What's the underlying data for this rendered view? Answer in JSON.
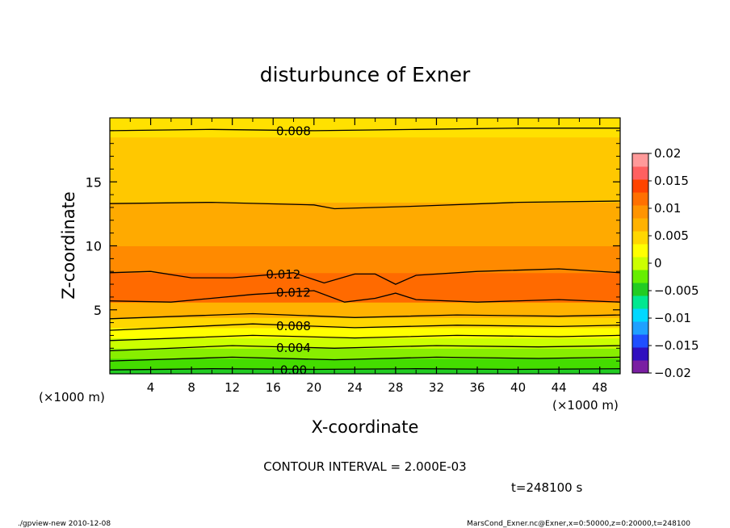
{
  "chart_data": {
    "type": "heatmap",
    "title": "disturbunce of Exner",
    "xlabel": "X-coordinate",
    "ylabel": "Z-coordinate",
    "x_unit_left": "(×1000 m)",
    "x_unit_right": "(×1000 m)",
    "xlim": [
      0,
      50
    ],
    "ylim": [
      0,
      20
    ],
    "x_ticks": [
      "4",
      "8",
      "12",
      "16",
      "20",
      "24",
      "28",
      "32",
      "36",
      "40",
      "44",
      "48"
    ],
    "y_ticks": [
      "5",
      "10",
      "15"
    ],
    "colorbar": {
      "ticks": [
        "0.02",
        "0.015",
        "0.01",
        "0.005",
        "0",
        "−0.005",
        "−0.01",
        "−0.015",
        "−0.02"
      ],
      "tick_values": [
        0.02,
        0.015,
        0.01,
        0.005,
        0,
        -0.005,
        -0.01,
        -0.015,
        -0.02
      ],
      "range": [
        -0.02,
        0.02
      ],
      "colors": [
        "#7a1fa2",
        "#2f0fbf",
        "#1f4fff",
        "#1fa0ff",
        "#00d8ff",
        "#00e890",
        "#22cc22",
        "#66ee00",
        "#ccff00",
        "#ffff00",
        "#ffd700",
        "#ffb200",
        "#ff9400",
        "#ff7000",
        "#ff4400",
        "#ff6060",
        "#ff9a9a"
      ]
    },
    "bands": [
      {
        "z": [
          0.0,
          0.4
        ],
        "color": "#22cc22"
      },
      {
        "z": [
          0.4,
          1.2
        ],
        "color": "#44dd00"
      },
      {
        "z": [
          1.2,
          2.0
        ],
        "color": "#88ee00"
      },
      {
        "z": [
          2.0,
          2.8
        ],
        "color": "#ccff00"
      },
      {
        "z": [
          2.8,
          3.6
        ],
        "color": "#ffff00"
      },
      {
        "z": [
          3.6,
          4.4
        ],
        "color": "#ffd700"
      },
      {
        "z": [
          4.4,
          5.6
        ],
        "color": "#ffb200"
      },
      {
        "z": [
          5.6,
          7.9
        ],
        "color": "#ff6a00"
      },
      {
        "z": [
          7.9,
          10.0
        ],
        "color": "#ff8a00"
      },
      {
        "z": [
          10.0,
          13.4
        ],
        "color": "#ffaa00"
      },
      {
        "z": [
          13.4,
          18.5
        ],
        "color": "#ffc800"
      },
      {
        "z": [
          18.5,
          20.0
        ],
        "color": "#ffe100"
      }
    ],
    "contours": [
      {
        "level": "0.00",
        "points": [
          [
            0,
            0.3
          ],
          [
            10,
            0.4
          ],
          [
            20,
            0.35
          ],
          [
            30,
            0.4
          ],
          [
            40,
            0.35
          ],
          [
            50,
            0.4
          ]
        ]
      },
      {
        "level": "",
        "points": [
          [
            0,
            1.0
          ],
          [
            12,
            1.3
          ],
          [
            22,
            1.1
          ],
          [
            32,
            1.3
          ],
          [
            42,
            1.2
          ],
          [
            50,
            1.3
          ]
        ]
      },
      {
        "level": "0.004",
        "points": [
          [
            0,
            1.8
          ],
          [
            12,
            2.2
          ],
          [
            22,
            2.0
          ],
          [
            32,
            2.2
          ],
          [
            42,
            2.1
          ],
          [
            50,
            2.2
          ]
        ]
      },
      {
        "level": "",
        "points": [
          [
            0,
            2.6
          ],
          [
            14,
            3.0
          ],
          [
            24,
            2.8
          ],
          [
            34,
            3.0
          ],
          [
            44,
            2.9
          ],
          [
            50,
            3.0
          ]
        ]
      },
      {
        "level": "0.008",
        "points": [
          [
            0,
            3.4
          ],
          [
            14,
            3.9
          ],
          [
            24,
            3.6
          ],
          [
            34,
            3.8
          ],
          [
            44,
            3.7
          ],
          [
            50,
            3.8
          ]
        ]
      },
      {
        "level": "",
        "points": [
          [
            0,
            4.3
          ],
          [
            14,
            4.7
          ],
          [
            24,
            4.4
          ],
          [
            34,
            4.6
          ],
          [
            44,
            4.5
          ],
          [
            50,
            4.6
          ]
        ]
      },
      {
        "level": "0.012",
        "points": [
          [
            0,
            5.7
          ],
          [
            6,
            5.6
          ],
          [
            14,
            6.2
          ],
          [
            20,
            6.5
          ],
          [
            23,
            5.6
          ],
          [
            26,
            5.9
          ],
          [
            28,
            6.3
          ],
          [
            30,
            5.8
          ],
          [
            36,
            5.6
          ],
          [
            44,
            5.8
          ],
          [
            50,
            5.6
          ]
        ]
      },
      {
        "level": "0.012",
        "points": [
          [
            0,
            7.9
          ],
          [
            4,
            8.0
          ],
          [
            8,
            7.5
          ],
          [
            12,
            7.5
          ],
          [
            18,
            7.9
          ],
          [
            21,
            7.1
          ],
          [
            24,
            7.8
          ],
          [
            26,
            7.8
          ],
          [
            28,
            7.0
          ],
          [
            30,
            7.7
          ],
          [
            36,
            8.0
          ],
          [
            44,
            8.2
          ],
          [
            50,
            7.9
          ]
        ]
      },
      {
        "level": "",
        "points": [
          [
            0,
            13.3
          ],
          [
            10,
            13.4
          ],
          [
            20,
            13.2
          ],
          [
            22,
            12.9
          ],
          [
            30,
            13.1
          ],
          [
            40,
            13.4
          ],
          [
            50,
            13.5
          ]
        ]
      },
      {
        "level": "0.008",
        "points": [
          [
            0,
            19.0
          ],
          [
            10,
            19.1
          ],
          [
            20,
            19.0
          ],
          [
            30,
            19.1
          ],
          [
            40,
            19.2
          ],
          [
            50,
            19.2
          ]
        ]
      }
    ]
  },
  "annotations": {
    "contour_interval": "CONTOUR INTERVAL = 2.000E-03",
    "time": "t=248100 s",
    "footer_left": "./gpview-new  2010-12-08",
    "footer_right": "MarsCond_Exner.nc@Exner,x=0:50000,z=0:20000,t=248100"
  }
}
